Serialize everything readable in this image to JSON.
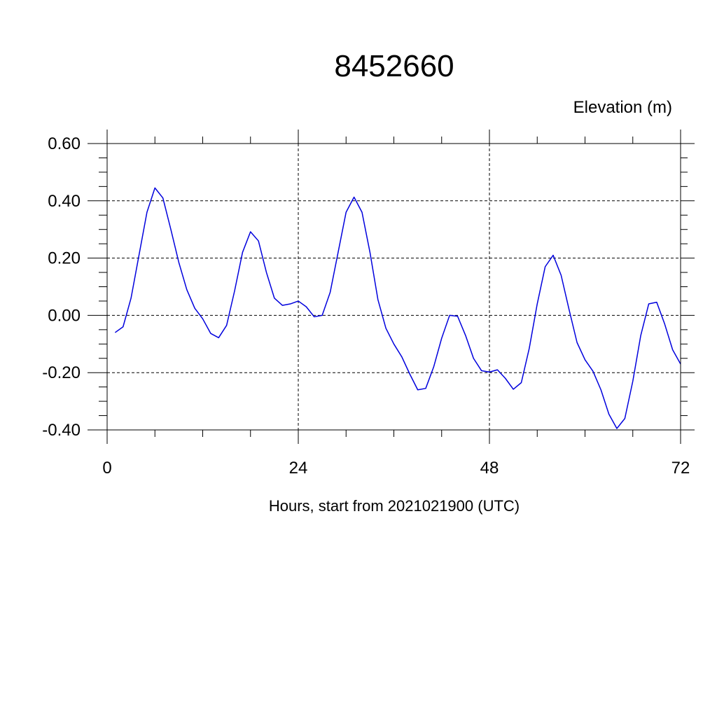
{
  "chart_data": {
    "type": "line",
    "title": "8452660",
    "ylabel": "Elevation (m)",
    "xlabel": "Hours, start from 2021021900 (UTC)",
    "xlim": [
      0,
      72
    ],
    "ylim": [
      -0.4,
      0.6
    ],
    "xticks": [
      0,
      24,
      48,
      72
    ],
    "xtick_labels": [
      "0",
      "24",
      "48",
      "72"
    ],
    "yticks": [
      -0.4,
      -0.2,
      0.0,
      0.2,
      0.4,
      0.6
    ],
    "ytick_labels": [
      "-0.40",
      "-0.20",
      "0.00",
      "0.20",
      "0.40",
      "0.60"
    ],
    "grid": true,
    "series": [
      {
        "color": "#0000dd",
        "x": [
          1,
          2,
          3,
          4,
          5,
          6,
          7,
          8,
          9,
          10,
          11,
          12,
          13,
          14,
          15,
          16,
          17,
          18,
          19,
          20,
          21,
          22,
          23,
          24,
          25,
          26,
          27,
          28,
          29,
          30,
          31,
          32,
          33,
          34,
          35,
          36,
          37,
          38,
          39,
          40,
          41,
          42,
          43,
          44,
          45,
          46,
          47,
          48,
          49,
          50,
          51,
          52,
          53,
          54,
          55,
          56,
          57,
          58,
          59,
          60,
          61,
          62,
          63,
          64,
          65,
          66,
          67,
          68,
          69,
          70,
          71,
          72
        ],
        "y": [
          -0.06,
          -0.04,
          0.06,
          0.21,
          0.36,
          0.445,
          0.41,
          0.3,
          0.185,
          0.09,
          0.025,
          -0.012,
          -0.063,
          -0.078,
          -0.035,
          0.085,
          0.22,
          0.292,
          0.26,
          0.15,
          0.06,
          0.035,
          0.04,
          0.05,
          0.03,
          -0.005,
          0.0,
          0.08,
          0.22,
          0.36,
          0.413,
          0.36,
          0.22,
          0.055,
          -0.045,
          -0.1,
          -0.145,
          -0.205,
          -0.26,
          -0.255,
          -0.18,
          -0.08,
          0.0,
          -0.003,
          -0.07,
          -0.15,
          -0.193,
          -0.198,
          -0.19,
          -0.22,
          -0.258,
          -0.235,
          -0.115,
          0.04,
          0.17,
          0.21,
          0.14,
          0.02,
          -0.095,
          -0.155,
          -0.195,
          -0.26,
          -0.345,
          -0.395,
          -0.36,
          -0.23,
          -0.07,
          0.04,
          0.046,
          -0.03,
          -0.12,
          -0.17
        ]
      }
    ]
  }
}
